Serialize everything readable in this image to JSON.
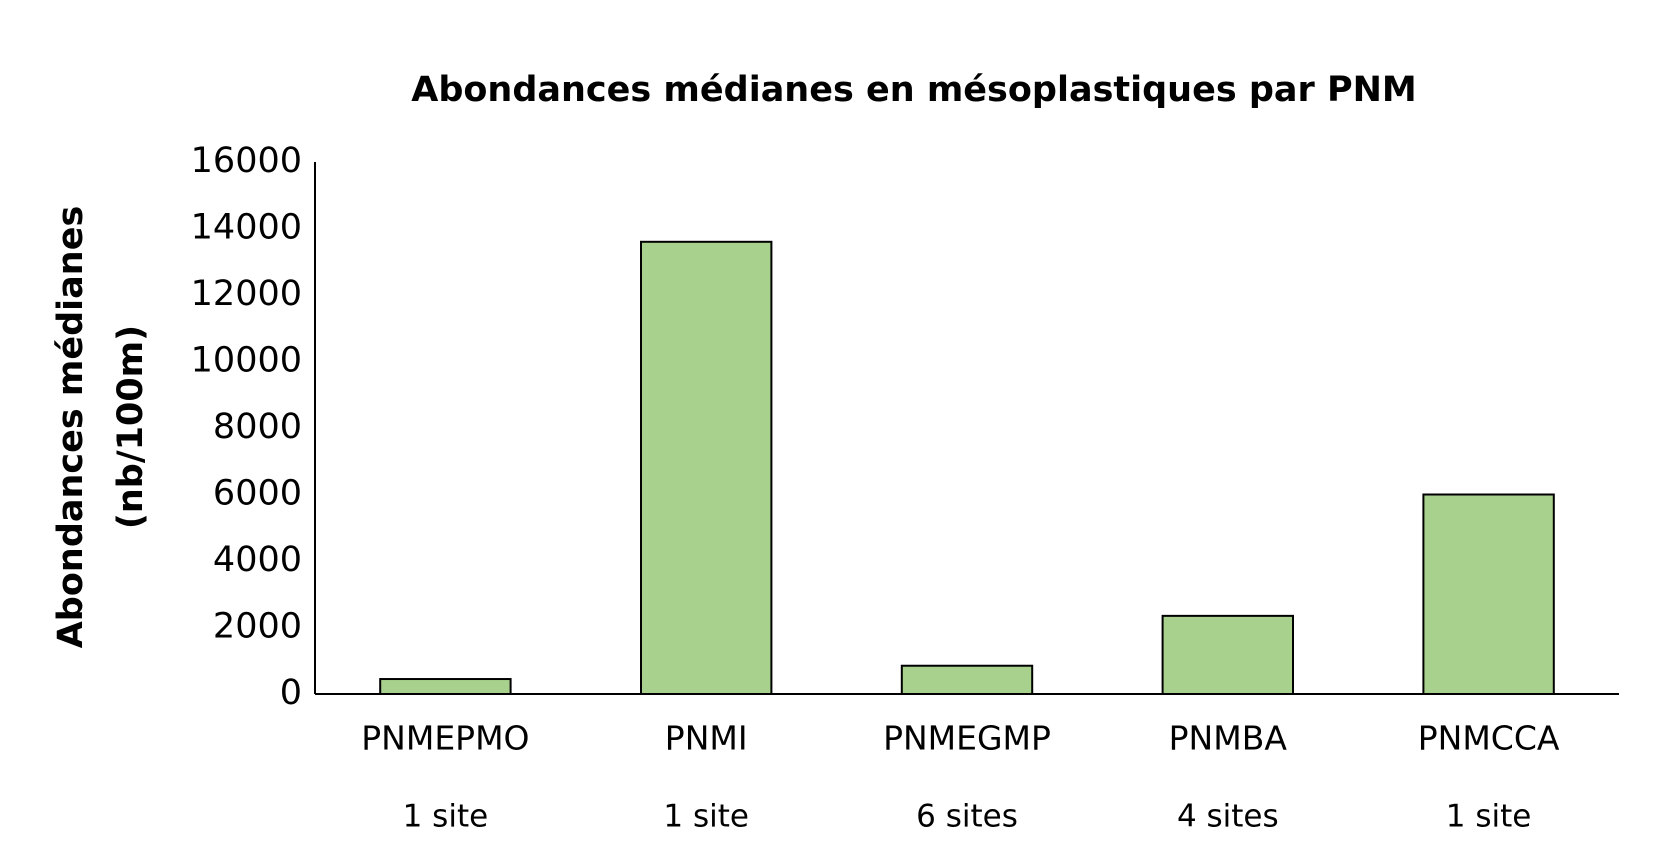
{
  "chart_data": {
    "type": "bar",
    "title": "Abondances médianes en mésoplastiques par PNM",
    "ylabel": [
      "Abondances médianes",
      "(nb/100m)"
    ],
    "categories": [
      "PNMEPMO",
      "PNMI",
      "PNMEGMP",
      "PNMBA",
      "PNMCCA"
    ],
    "site_counts": [
      "1 site",
      "1 site",
      "6 sites",
      "4 sites",
      "1 site"
    ],
    "values": [
      450,
      13600,
      850,
      2350,
      6000
    ],
    "color": "#a9d18e",
    "ylim": [
      0,
      16000
    ],
    "yticks": [
      0,
      2000,
      4000,
      6000,
      8000,
      10000,
      12000,
      14000,
      16000
    ],
    "grid": false
  }
}
